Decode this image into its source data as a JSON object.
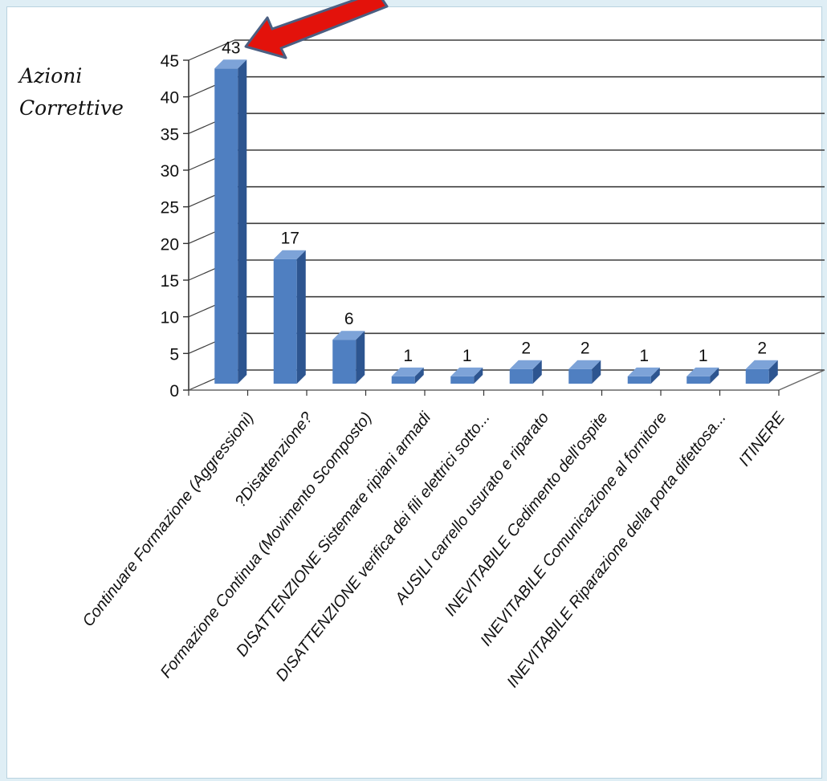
{
  "chart_data": {
    "type": "bar",
    "ylabel_lines": [
      "Azioni",
      "Correttive"
    ],
    "categories": [
      "Continuare Formazione (Aggressioni)",
      "?Disattenzione?",
      "Formazione Continua (Movimento Scomposto)",
      "DISATTENZIONE Sistemare ripiani armadi",
      "DISATTENZIONE verifica dei fili elettrici sotto...",
      "AUSILI carrello usurato e riparato",
      "INEVITABILE Cedimento dell'ospite",
      "INEVITABILE Comunicazione al fornitore",
      "INEVITABILE Riparazione della porta difettosa...",
      "ITINERE"
    ],
    "values": [
      43,
      17,
      6,
      1,
      1,
      2,
      2,
      1,
      1,
      2
    ],
    "data_labels": [
      "43",
      "17",
      "6",
      "1",
      "1",
      "2",
      "2",
      "1",
      "1",
      "2"
    ],
    "y_ticks": [
      "0",
      "5",
      "10",
      "15",
      "20",
      "25",
      "30",
      "35",
      "40",
      "45"
    ],
    "ylim": [
      0,
      45
    ],
    "grid": true,
    "bar_style": "3d",
    "colors": {
      "bar_front": "#4f7fc1",
      "bar_side": "#2d5590",
      "bar_top": "#7da3d8",
      "grid": "#3d3d3d",
      "annotation_arrow": "#e3120b"
    }
  }
}
